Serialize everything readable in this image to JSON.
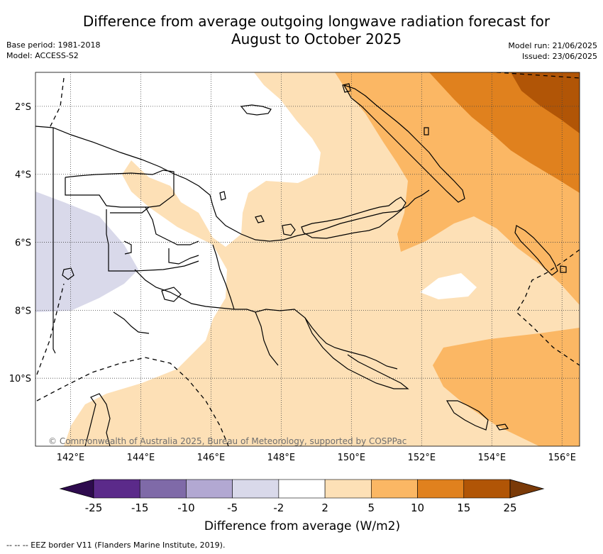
{
  "title": {
    "line1": "Difference from average outgoing longwave radiation forecast for",
    "line2": "August to October 2025"
  },
  "meta_left": {
    "base_period": "Base period: 1981-2018",
    "model": "Model: ACCESS-S2"
  },
  "meta_right": {
    "model_run": "Model run: 21/06/2025",
    "issued": "Issued: 23/06/2025"
  },
  "map": {
    "lon_range": [
      141,
      156.5
    ],
    "lat_range": [
      -12,
      -1
    ],
    "lon_ticks": [
      {
        "value": 142,
        "label": "142°E"
      },
      {
        "value": 144,
        "label": "144°E"
      },
      {
        "value": 146,
        "label": "146°E"
      },
      {
        "value": 148,
        "label": "148°E"
      },
      {
        "value": 150,
        "label": "150°E"
      },
      {
        "value": 152,
        "label": "152°E"
      },
      {
        "value": 154,
        "label": "154°E"
      },
      {
        "value": 156,
        "label": "156°E"
      }
    ],
    "lat_ticks": [
      {
        "value": -2,
        "label": "2°S"
      },
      {
        "value": -4,
        "label": "4°S"
      },
      {
        "value": -6,
        "label": "6°S"
      },
      {
        "value": -8,
        "label": "8°S"
      },
      {
        "value": -10,
        "label": "10°S"
      }
    ],
    "gridlines": true,
    "copyright": "© Commonwealth of Australia 2025, Bureau of Meteorology, supported by COSPPac"
  },
  "colorbar": {
    "title": "Difference from average (W/m2)",
    "labels": [
      "-25",
      "-15",
      "-10",
      "-5",
      "-2",
      "2",
      "5",
      "10",
      "15",
      "25"
    ],
    "low_extend_color": "#2e0b4e",
    "high_extend_color": "#7a3a08",
    "colors": [
      "#5b2a8a",
      "#7f6aa8",
      "#b2a8d2",
      "#d9d9ea",
      "#ffffff",
      "#fde0b6",
      "#fbb764",
      "#e0811e",
      "#b15506"
    ]
  },
  "footer": "--  --  -- EEZ border V11 (Flanders Marine Institute, 2019)."
}
